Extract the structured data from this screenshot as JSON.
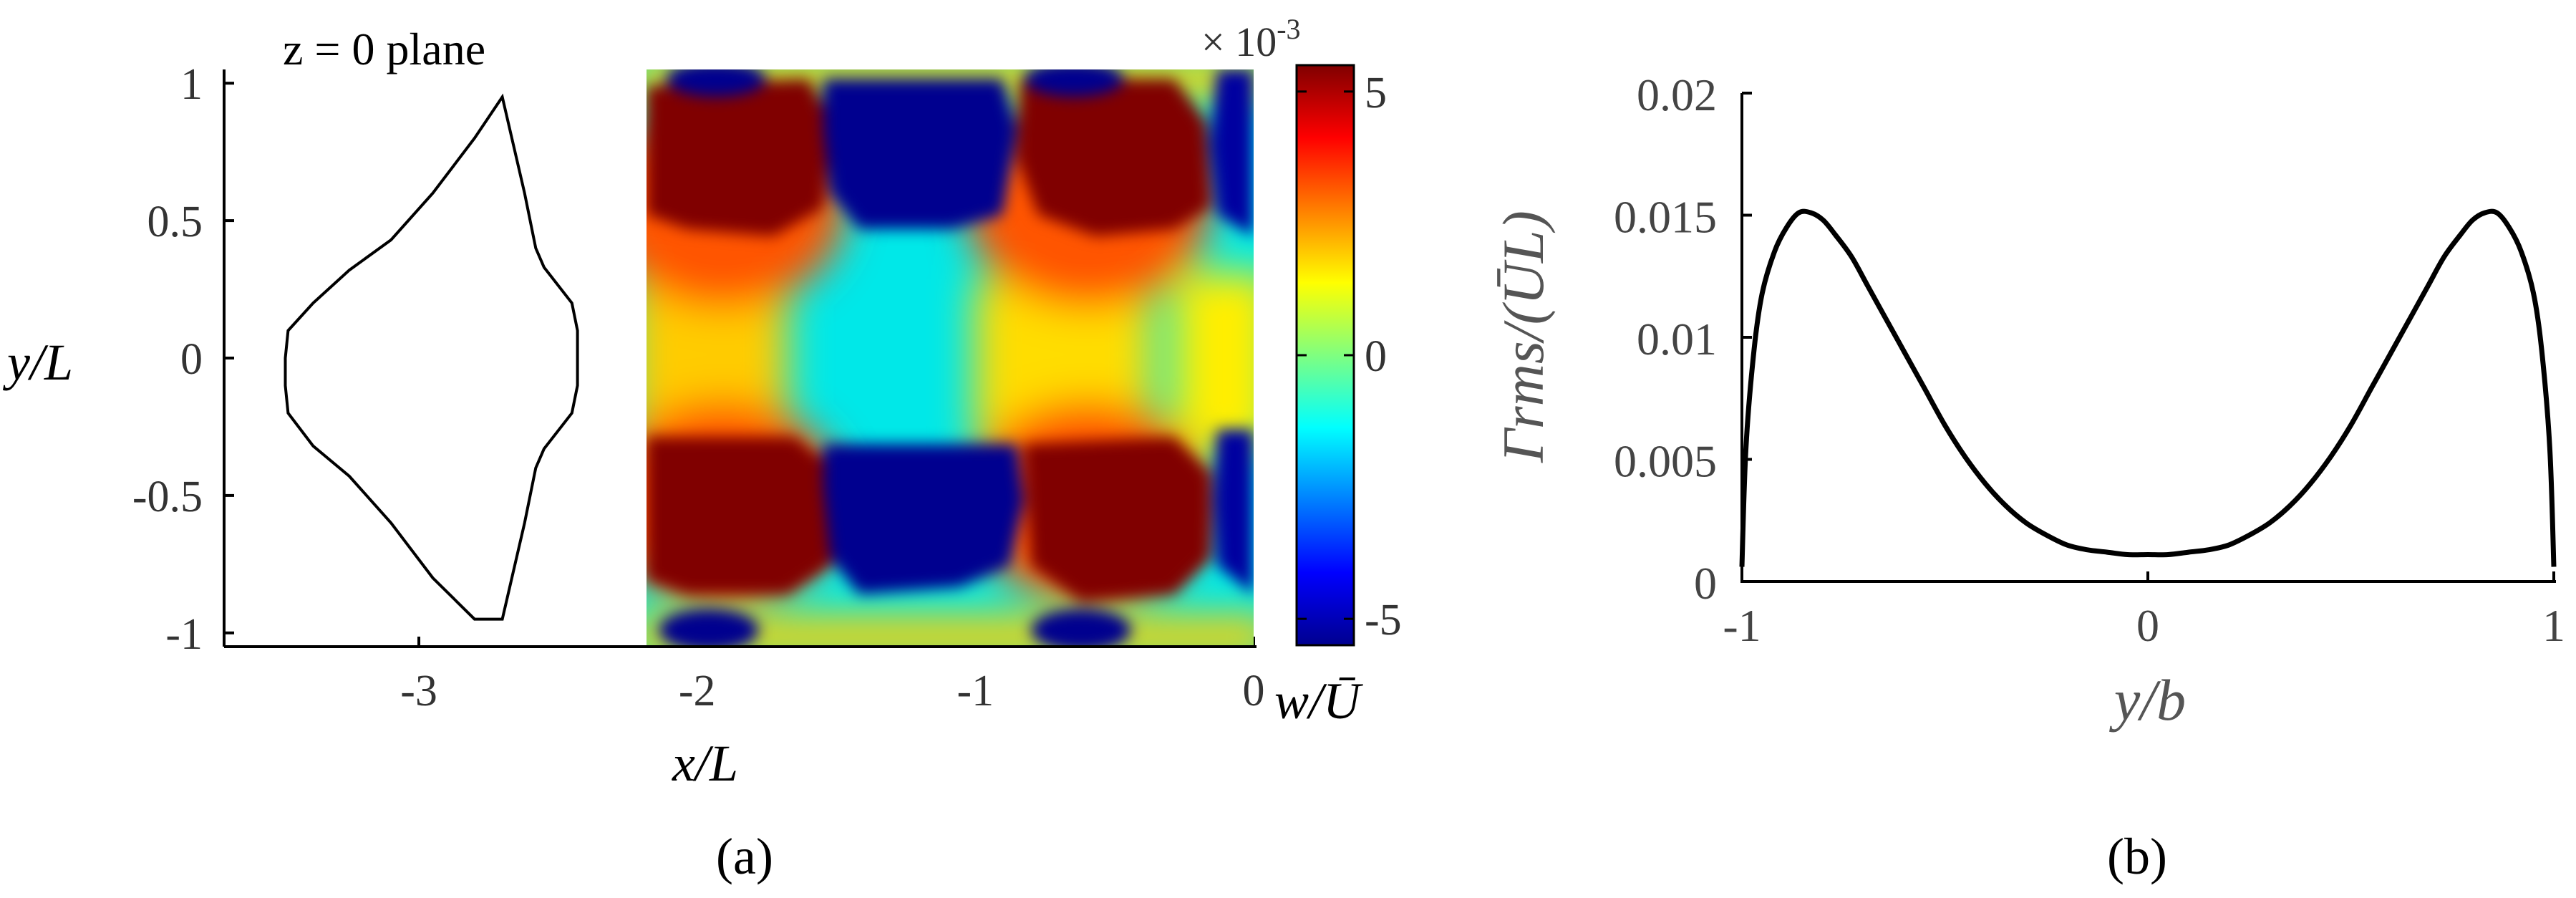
{
  "chart_data": [
    {
      "type": "line",
      "panel_label": "(a)",
      "title": "z = 0 plane",
      "xlabel": "x/L",
      "ylabel": "y/L",
      "xlim": [
        -3.7,
        0
      ],
      "ylim": [
        -1.05,
        1.05
      ],
      "xticks": [
        -3,
        -2,
        -1,
        0
      ],
      "yticks": [
        1,
        0.5,
        0,
        -0.5,
        -1
      ],
      "xtick_labels": [
        "-3",
        "-2",
        "-1",
        "0"
      ],
      "ytick_labels": [
        "1",
        "0.5",
        "0",
        "-0.5",
        "-1"
      ],
      "series": [
        {
          "description_of_shape": "closed outline",
          "x": [
            -2.7,
            -2.8,
            -2.95,
            -3.1,
            -3.25,
            -3.38,
            -3.47,
            -3.48,
            -3.48,
            -3.47,
            -3.38,
            -3.25,
            -3.1,
            -2.95,
            -2.8,
            -2.7,
            -2.62,
            -2.58,
            -2.55,
            -2.45,
            -2.43,
            -2.43,
            -2.45,
            -2.55,
            -2.58,
            -2.62,
            -2.7
          ],
          "y": [
            0.95,
            0.8,
            0.6,
            0.43,
            0.32,
            0.2,
            0.1,
            0.0,
            -0.1,
            -0.2,
            -0.32,
            -0.43,
            -0.6,
            -0.8,
            -0.95,
            -0.95,
            -0.6,
            -0.4,
            -0.33,
            -0.2,
            -0.1,
            0.1,
            0.2,
            0.33,
            0.4,
            0.6,
            0.95
          ]
        }
      ]
    },
    {
      "type": "heatmap",
      "xlim": [
        -2.2,
        0
      ],
      "ylim": [
        -1.05,
        1.05
      ],
      "colorbar": {
        "label": "w/Ū",
        "exponent_label": "× 10",
        "exponent": "-3",
        "range": [
          -5.5,
          5.5
        ],
        "ticks": [
          5,
          0,
          -5
        ],
        "tick_labels": [
          "5",
          "0",
          "-5"
        ],
        "colormap": "jet"
      }
    },
    {
      "type": "line",
      "panel_label": "(b)",
      "xlabel": "y/b",
      "ylabel": "Γrms/(ŪL)",
      "xlim": [
        -1,
        1
      ],
      "ylim": [
        0,
        0.02
      ],
      "xticks": [
        -1,
        0,
        1
      ],
      "yticks": [
        0,
        0.005,
        0.01,
        0.015,
        0.02
      ],
      "xtick_labels": [
        "-1",
        "0",
        "1"
      ],
      "ytick_labels": [
        "0",
        "0.005",
        "0.01",
        "0.015",
        "0.02"
      ],
      "series": [
        {
          "x": [
            -1,
            -0.99,
            -0.97,
            -0.95,
            -0.92,
            -0.89,
            -0.86,
            -0.83,
            -0.8,
            -0.77,
            -0.73,
            -0.69,
            -0.65,
            -0.6,
            -0.55,
            -0.5,
            -0.45,
            -0.4,
            -0.35,
            -0.3,
            -0.25,
            -0.2,
            -0.15,
            -0.1,
            -0.05,
            0,
            0.05,
            0.1,
            0.15,
            0.2,
            0.25,
            0.3,
            0.35,
            0.4,
            0.45,
            0.5,
            0.55,
            0.6,
            0.65,
            0.69,
            0.73,
            0.77,
            0.8,
            0.83,
            0.86,
            0.89,
            0.92,
            0.95,
            0.97,
            0.99,
            1
          ],
          "y": [
            0.0006,
            0.0055,
            0.0095,
            0.0118,
            0.0135,
            0.0145,
            0.0151,
            0.0151,
            0.0148,
            0.0142,
            0.0133,
            0.0121,
            0.0109,
            0.0094,
            0.0079,
            0.0064,
            0.0051,
            0.004,
            0.0031,
            0.0024,
            0.0019,
            0.0015,
            0.0013,
            0.0012,
            0.0011,
            0.0011,
            0.0011,
            0.0012,
            0.0013,
            0.0015,
            0.0019,
            0.0024,
            0.0031,
            0.004,
            0.0051,
            0.0064,
            0.0079,
            0.0094,
            0.0109,
            0.0121,
            0.0133,
            0.0142,
            0.0148,
            0.0151,
            0.0151,
            0.0145,
            0.0135,
            0.0118,
            0.0095,
            0.0055,
            0.0006
          ]
        }
      ]
    }
  ]
}
